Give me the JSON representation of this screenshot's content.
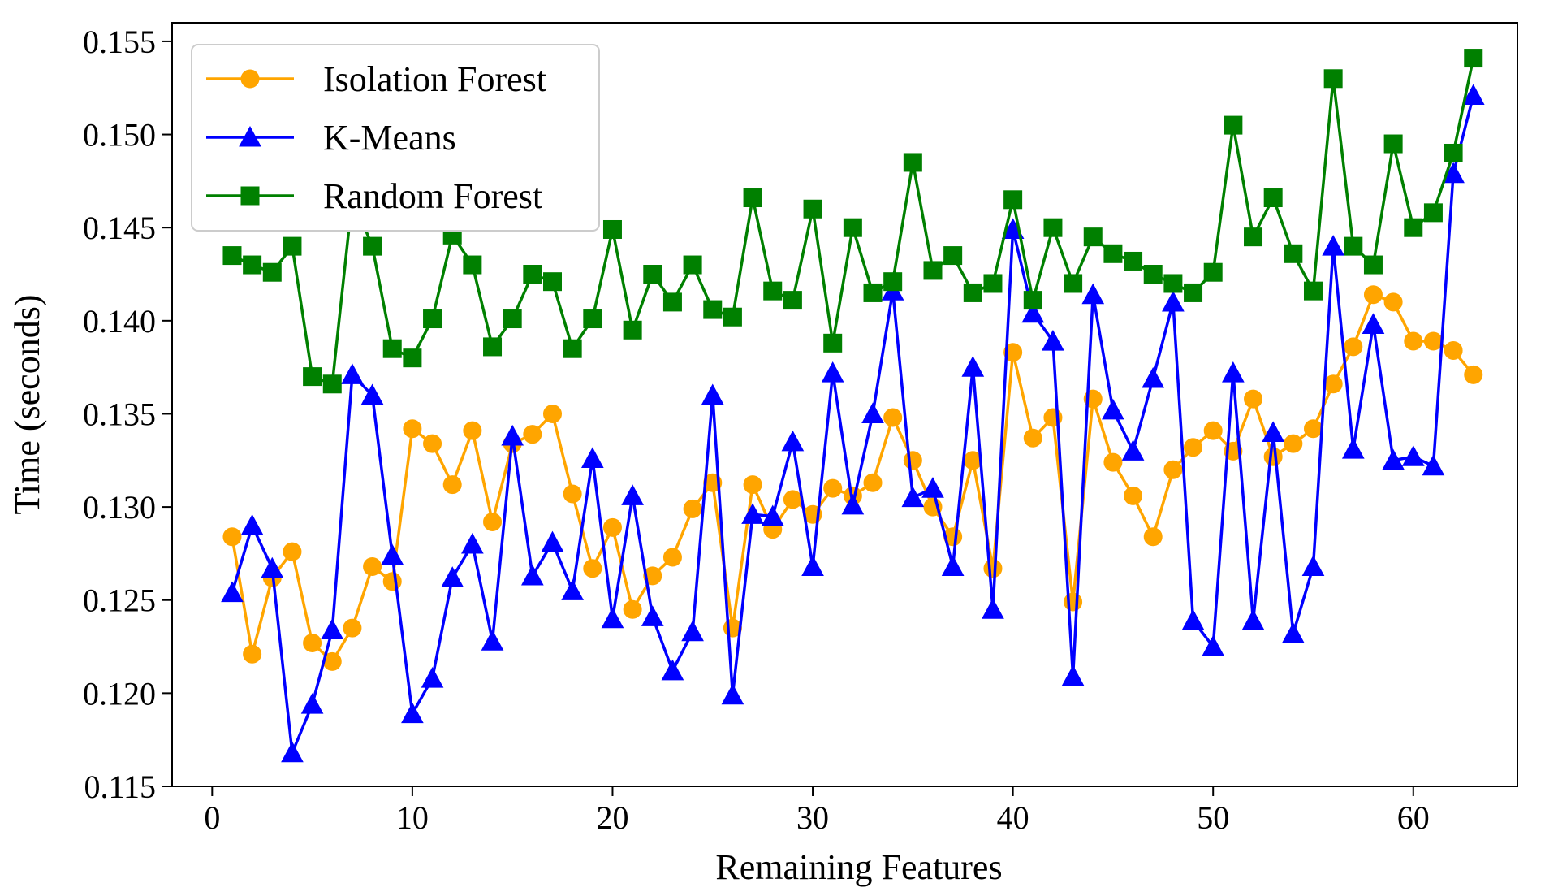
{
  "chart_data": {
    "type": "line",
    "title": "",
    "xlabel": "Remaining Features",
    "ylabel": "Time (seconds)",
    "xlim": [
      -2,
      65.2
    ],
    "ylim": [
      0.115,
      0.156
    ],
    "xticks": [
      0,
      10,
      20,
      30,
      40,
      50,
      60
    ],
    "yticks": [
      0.115,
      0.12,
      0.125,
      0.13,
      0.135,
      0.14,
      0.145,
      0.15,
      0.155
    ],
    "ytick_labels": [
      "0.115",
      "0.120",
      "0.125",
      "0.130",
      "0.135",
      "0.140",
      "0.145",
      "0.150",
      "0.155"
    ],
    "grid": false,
    "legend_position": "top-left",
    "x": [
      1,
      2,
      3,
      4,
      5,
      6,
      7,
      8,
      9,
      10,
      11,
      12,
      13,
      14,
      15,
      16,
      17,
      18,
      19,
      20,
      21,
      22,
      23,
      24,
      25,
      26,
      27,
      28,
      29,
      30,
      31,
      32,
      33,
      34,
      35,
      36,
      37,
      38,
      39,
      40,
      41,
      42,
      43,
      44,
      45,
      46,
      47,
      48,
      49,
      50,
      51,
      52,
      53,
      54,
      55,
      56,
      57,
      58,
      59,
      60,
      61,
      62,
      63
    ],
    "series": [
      {
        "name": "Isolation Forest",
        "color": "#FFA500",
        "marker": "circle",
        "values": [
          0.1284,
          0.1221,
          0.1262,
          0.1276,
          0.1227,
          0.1217,
          0.1235,
          0.1268,
          0.126,
          0.1342,
          0.1334,
          0.1312,
          0.1341,
          0.1292,
          0.1334,
          0.1339,
          0.135,
          0.1307,
          0.1267,
          0.1289,
          0.1245,
          0.1263,
          0.1273,
          0.1299,
          0.1313,
          0.1235,
          0.1312,
          0.1288,
          0.1304,
          0.1296,
          0.131,
          0.1306,
          0.1313,
          0.1348,
          0.1325,
          0.13,
          0.1284,
          0.1325,
          0.1267,
          0.1383,
          0.1337,
          0.1348,
          0.1249,
          0.1358,
          0.1324,
          0.1306,
          0.1284,
          0.132,
          0.1332,
          0.1341,
          0.133,
          0.1358,
          0.1327,
          0.1334,
          0.1342,
          0.1366,
          0.1386,
          0.1414,
          0.141,
          0.1389,
          0.1389,
          0.1384,
          0.1371
        ]
      },
      {
        "name": "K-Means",
        "color": "#0000FF",
        "marker": "triangle",
        "values": [
          0.1254,
          0.129,
          0.1267,
          0.1168,
          0.1194,
          0.1234,
          0.1371,
          0.136,
          0.1274,
          0.1189,
          0.1208,
          0.1262,
          0.128,
          0.1228,
          0.1338,
          0.1263,
          0.1281,
          0.1255,
          0.1326,
          0.124,
          0.1306,
          0.1241,
          0.1212,
          0.1233,
          0.136,
          0.1199,
          0.1296,
          0.1295,
          0.1335,
          0.1268,
          0.1372,
          0.1301,
          0.135,
          0.1416,
          0.1305,
          0.131,
          0.1268,
          0.1375,
          0.1245,
          0.1449,
          0.1404,
          0.1389,
          0.1209,
          0.1414,
          0.1352,
          0.133,
          0.1369,
          0.141,
          0.1239,
          0.1225,
          0.1372,
          0.1239,
          0.134,
          0.1232,
          0.1268,
          0.144,
          0.1331,
          0.1398,
          0.1325,
          0.1327,
          0.1322,
          0.1479,
          0.1521
        ]
      },
      {
        "name": "Random Forest",
        "color": "#008000",
        "marker": "square",
        "values": [
          0.1435,
          0.143,
          0.1426,
          0.144,
          0.137,
          0.1366,
          0.1466,
          0.144,
          0.1385,
          0.138,
          0.1401,
          0.1446,
          0.143,
          0.1386,
          0.1401,
          0.1425,
          0.1421,
          0.1385,
          0.1401,
          0.1449,
          0.1395,
          0.1425,
          0.141,
          0.143,
          0.1406,
          0.1402,
          0.1466,
          0.1416,
          0.1411,
          0.146,
          0.1388,
          0.145,
          0.1415,
          0.1421,
          0.1485,
          0.1427,
          0.1435,
          0.1415,
          0.142,
          0.1465,
          0.1411,
          0.145,
          0.142,
          0.1445,
          0.1436,
          0.1432,
          0.1425,
          0.142,
          0.1415,
          0.1426,
          0.1505,
          0.1445,
          0.1466,
          0.1436,
          0.1416,
          0.153,
          0.144,
          0.143,
          0.1495,
          0.145,
          0.1458,
          0.149,
          0.1541
        ]
      }
    ]
  }
}
